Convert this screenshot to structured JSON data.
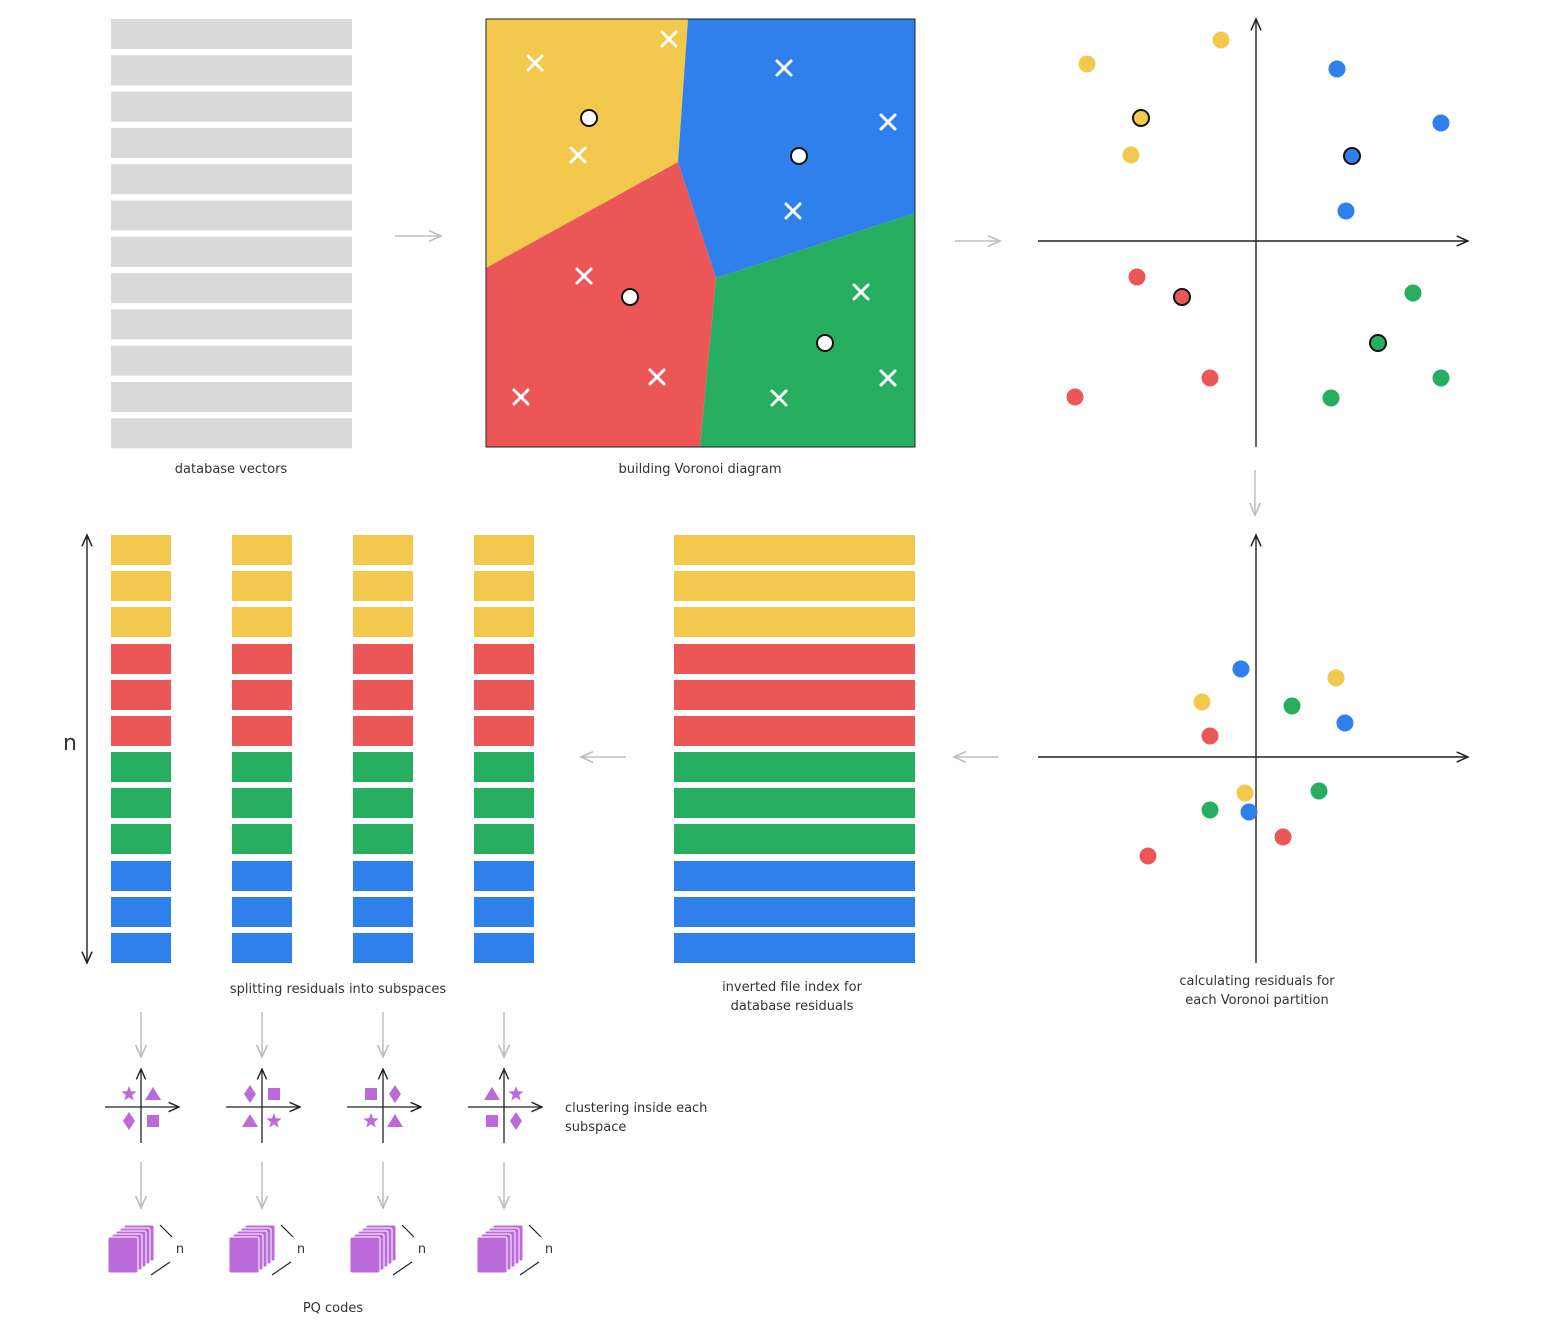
{
  "labels": {
    "database_vectors": "database vectors",
    "voronoi": "building Voronoi diagram",
    "residuals": "calculating residuals for\neach Voronoi partition",
    "inverted_index": "inverted file index for\ndatabase residuals",
    "splitting": "splitting residuals into subspaces",
    "clustering": "clustering inside each subspace",
    "pq_codes": "PQ codes",
    "n_axis": "n",
    "n_block": "n"
  },
  "colors": {
    "yellow": "#F2C94C",
    "red": "#EB5757",
    "blue": "#2F80ED",
    "green": "#27AE60",
    "gray_bar": "#D9D9D9",
    "purple": "#BB6BD9",
    "arrow": "#BDBDBD",
    "axis": "#222222"
  },
  "bar_sequence": [
    "yellow",
    "yellow",
    "yellow",
    "red",
    "red",
    "red",
    "green",
    "green",
    "green",
    "blue",
    "blue",
    "blue"
  ],
  "database_vector_count": 12,
  "subspace_count": 4,
  "subspace_cluster_symbols": [
    [
      "star",
      "triangle",
      "diamond",
      "square"
    ],
    [
      "diamond",
      "square",
      "triangle",
      "star"
    ],
    [
      "square",
      "diamond",
      "star",
      "triangle"
    ],
    [
      "triangle",
      "star",
      "square",
      "diamond"
    ]
  ],
  "voronoi_regions": [
    "yellow",
    "blue",
    "red",
    "green"
  ]
}
